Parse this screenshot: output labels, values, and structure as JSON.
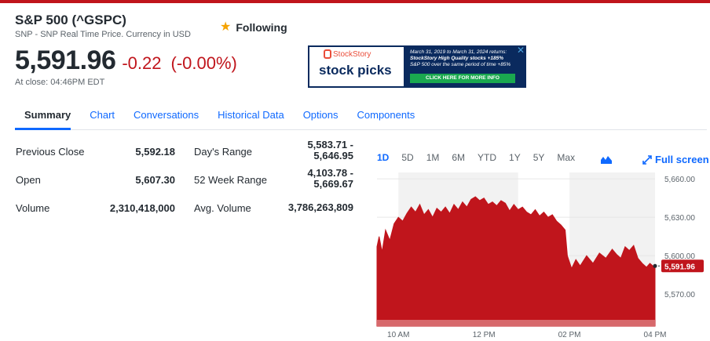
{
  "header": {
    "title": "S&P 500 (^GSPC)",
    "subtitle": "SNP - SNP Real Time Price. Currency in USD",
    "follow_label": "Following",
    "follow_icon": "star-icon"
  },
  "quote": {
    "price": "5,591.96",
    "change": "-0.22",
    "change_pct": "(-0.00%)",
    "close_time": "At close: 04:46PM EDT",
    "down_color": "#c0151c"
  },
  "ad": {
    "brand": "StockStory",
    "headline": "stock picks",
    "line1": "March 31, 2019 to March 31, 2024 returns:",
    "line2": "StockStory High Quality stocks +185%",
    "line3": "S&P 500 over the same period of time +85%",
    "cta": "CLICK HERE FOR MORE INFO",
    "close_icon": "close-icon"
  },
  "tabs": [
    "Summary",
    "Chart",
    "Conversations",
    "Historical Data",
    "Options",
    "Components"
  ],
  "stats_left": [
    {
      "label": "Previous Close",
      "value": "5,592.18"
    },
    {
      "label": "Open",
      "value": "5,607.30"
    },
    {
      "label": "Volume",
      "value": "2,310,418,000"
    }
  ],
  "stats_right": [
    {
      "label": "Day's Range",
      "value1": "5,583.71 -",
      "value2": "5,646.95"
    },
    {
      "label": "52 Week Range",
      "value1": "4,103.78 -",
      "value2": "5,669.67"
    },
    {
      "label": "Avg. Volume",
      "value1": "3,786,263,809",
      "value2": ""
    }
  ],
  "chart_controls": {
    "ranges": [
      "1D",
      "5D",
      "1M",
      "6M",
      "YTD",
      "1Y",
      "5Y",
      "Max"
    ],
    "active_range": "1D",
    "fullscreen_label": "Full screen"
  },
  "chart_data": {
    "type": "area",
    "x_ticks": [
      "10 AM",
      "12 PM",
      "02 PM",
      "04 PM"
    ],
    "y_ticks": [
      "5,660.00",
      "5,630.00",
      "5,600.00",
      "5,570.00"
    ],
    "y_tick_values": [
      5660,
      5630,
      5600,
      5570
    ],
    "ylim": [
      5545,
      5665
    ],
    "x_hours": [
      9.5,
      16.0
    ],
    "last_price_label": "5,591.96",
    "last_price": 5591.96,
    "color": "#c0151c",
    "series": [
      {
        "values": [
          [
            9.5,
            5607
          ],
          [
            9.55,
            5615
          ],
          [
            9.62,
            5603
          ],
          [
            9.7,
            5620
          ],
          [
            9.8,
            5612
          ],
          [
            9.9,
            5625
          ],
          [
            10.0,
            5630
          ],
          [
            10.1,
            5627
          ],
          [
            10.2,
            5633
          ],
          [
            10.3,
            5638
          ],
          [
            10.4,
            5634
          ],
          [
            10.5,
            5640
          ],
          [
            10.6,
            5632
          ],
          [
            10.7,
            5636
          ],
          [
            10.8,
            5630
          ],
          [
            10.9,
            5637
          ],
          [
            11.0,
            5634
          ],
          [
            11.1,
            5638
          ],
          [
            11.2,
            5633
          ],
          [
            11.3,
            5640
          ],
          [
            11.4,
            5636
          ],
          [
            11.5,
            5642
          ],
          [
            11.6,
            5638
          ],
          [
            11.7,
            5644
          ],
          [
            11.8,
            5646
          ],
          [
            11.9,
            5643
          ],
          [
            12.0,
            5645
          ],
          [
            12.1,
            5640
          ],
          [
            12.2,
            5642
          ],
          [
            12.3,
            5639
          ],
          [
            12.4,
            5643
          ],
          [
            12.5,
            5641
          ],
          [
            12.6,
            5635
          ],
          [
            12.7,
            5640
          ],
          [
            12.8,
            5636
          ],
          [
            12.9,
            5638
          ],
          [
            13.0,
            5634
          ],
          [
            13.1,
            5632
          ],
          [
            13.2,
            5636
          ],
          [
            13.3,
            5631
          ],
          [
            13.4,
            5634
          ],
          [
            13.5,
            5630
          ],
          [
            13.6,
            5632
          ],
          [
            13.7,
            5627
          ],
          [
            13.8,
            5624
          ],
          [
            13.9,
            5620
          ],
          [
            13.95,
            5600
          ],
          [
            14.05,
            5590
          ],
          [
            14.15,
            5597
          ],
          [
            14.25,
            5592
          ],
          [
            14.4,
            5600
          ],
          [
            14.55,
            5594
          ],
          [
            14.7,
            5602
          ],
          [
            14.85,
            5598
          ],
          [
            15.0,
            5605
          ],
          [
            15.1,
            5601
          ],
          [
            15.2,
            5598
          ],
          [
            15.3,
            5607
          ],
          [
            15.4,
            5604
          ],
          [
            15.5,
            5608
          ],
          [
            15.6,
            5598
          ],
          [
            15.7,
            5594
          ],
          [
            15.8,
            5591
          ],
          [
            15.88,
            5594
          ],
          [
            15.95,
            5592
          ],
          [
            16.0,
            5591.96
          ]
        ]
      }
    ]
  }
}
